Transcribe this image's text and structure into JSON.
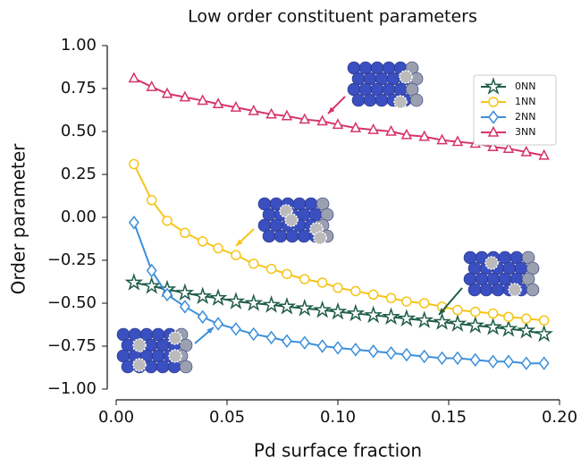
{
  "chart_data": {
    "type": "line",
    "title": "Low order constituent parameters",
    "x_label": "Pd surface fraction",
    "y_label": "Order parameter",
    "x": [
      0.008,
      0.016,
      0.023,
      0.031,
      0.039,
      0.046,
      0.054,
      0.062,
      0.07,
      0.077,
      0.085,
      0.093,
      0.1,
      0.108,
      0.116,
      0.124,
      0.131,
      0.139,
      0.147,
      0.154,
      0.162,
      0.17,
      0.177,
      0.185,
      0.193
    ],
    "series": [
      {
        "name": "0NN",
        "color": "#1f5c4a",
        "marker": "star",
        "values": [
          -0.38,
          -0.4,
          -0.42,
          -0.44,
          -0.46,
          -0.47,
          -0.49,
          -0.5,
          -0.51,
          -0.52,
          -0.53,
          -0.54,
          -0.55,
          -0.56,
          -0.57,
          -0.58,
          -0.59,
          -0.6,
          -0.61,
          -0.62,
          -0.63,
          -0.64,
          -0.65,
          -0.66,
          -0.68
        ]
      },
      {
        "name": "1NN",
        "color": "#f5c518",
        "marker": "circle",
        "values": [
          0.31,
          0.1,
          -0.02,
          -0.09,
          -0.14,
          -0.18,
          -0.22,
          -0.27,
          -0.3,
          -0.33,
          -0.36,
          -0.38,
          -0.41,
          -0.43,
          -0.45,
          -0.47,
          -0.49,
          -0.5,
          -0.52,
          -0.54,
          -0.55,
          -0.56,
          -0.58,
          -0.59,
          -0.6
        ]
      },
      {
        "name": "2NN",
        "color": "#3b8fdb",
        "marker": "diamond",
        "values": [
          -0.03,
          -0.31,
          -0.45,
          -0.52,
          -0.58,
          -0.62,
          -0.65,
          -0.68,
          -0.7,
          -0.72,
          -0.73,
          -0.75,
          -0.76,
          -0.77,
          -0.78,
          -0.79,
          -0.8,
          -0.81,
          -0.82,
          -0.82,
          -0.83,
          -0.84,
          -0.84,
          -0.85,
          -0.85
        ]
      },
      {
        "name": "3NN",
        "color": "#d6336c",
        "marker": "triangle",
        "values": [
          0.81,
          0.76,
          0.72,
          0.7,
          0.68,
          0.66,
          0.64,
          0.62,
          0.6,
          0.59,
          0.57,
          0.56,
          0.54,
          0.52,
          0.51,
          0.5,
          0.48,
          0.47,
          0.45,
          0.44,
          0.43,
          0.41,
          0.4,
          0.38,
          0.36
        ]
      }
    ],
    "xlim": [
      0,
      0.2
    ],
    "xticks": [
      {
        "value": 0,
        "label": "0.00"
      },
      {
        "value": 0.05,
        "label": "0.05"
      },
      {
        "value": 0.1,
        "label": "0.10"
      },
      {
        "value": 0.15,
        "label": "0.15"
      },
      {
        "value": 0.2,
        "label": "0.20"
      }
    ],
    "ylim": [
      -1,
      1
    ],
    "yticks": [
      {
        "value": -1,
        "label": "−1.00"
      },
      {
        "value": -0.75,
        "label": "−0.75"
      },
      {
        "value": -0.5,
        "label": "−0.50"
      },
      {
        "value": -0.25,
        "label": "−0.25"
      },
      {
        "value": 0,
        "label": "0.00"
      },
      {
        "value": 0.25,
        "label": "0.25"
      },
      {
        "value": 0.5,
        "label": "0.50"
      },
      {
        "value": 0.75,
        "label": "0.75"
      },
      {
        "value": 1,
        "label": "1.00"
      }
    ],
    "grid": false,
    "legend": "upper right"
  }
}
